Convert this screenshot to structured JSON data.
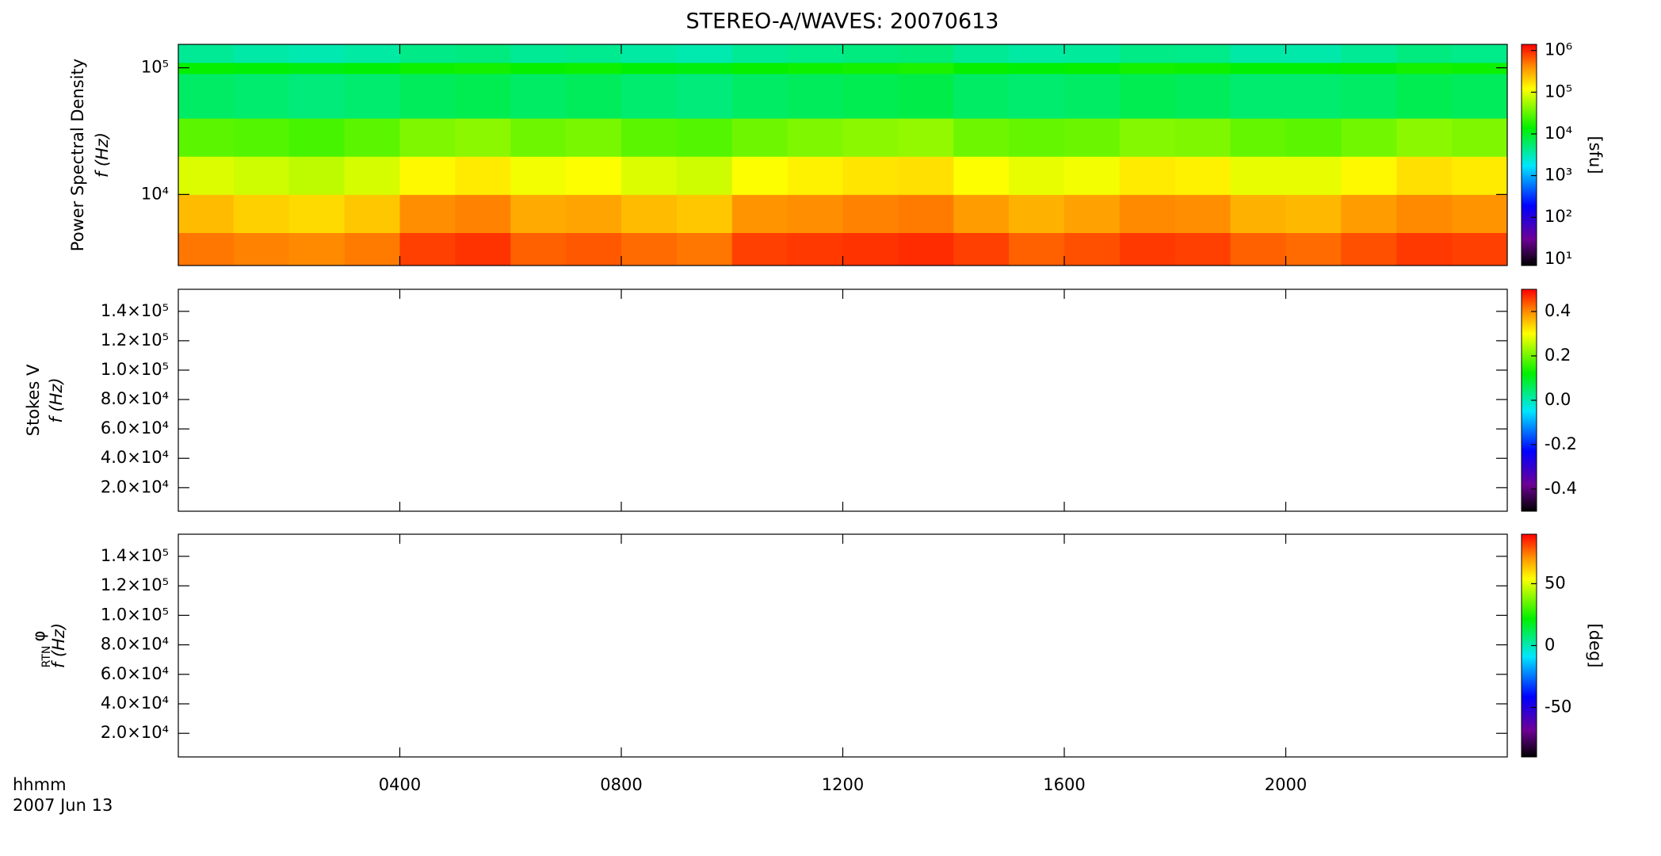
{
  "chart_data": {
    "type": "heatmap",
    "title": "STEREO-A/WAVES: 20070613",
    "xlabel": "hhmm",
    "date": "2007 Jun 13",
    "xlim": [
      0,
      24
    ],
    "xticks": [
      {
        "value": 4,
        "label": "0400"
      },
      {
        "value": 8,
        "label": "0800"
      },
      {
        "value": 12,
        "label": "1200"
      },
      {
        "value": 16,
        "label": "1600"
      },
      {
        "value": 20,
        "label": "2000"
      }
    ],
    "time_bins": [
      0,
      1,
      2,
      3,
      4,
      5,
      6,
      7,
      8,
      9,
      10,
      11,
      12,
      13,
      14,
      15,
      16,
      17,
      18,
      19,
      20,
      21,
      22,
      23,
      24
    ],
    "panels": [
      {
        "ylabel": "Power Spectral Density",
        "ylabel2": "f (Hz)",
        "ylog": true,
        "ylim": [
          2750,
          153000
        ],
        "yticks": [
          {
            "value": 10000,
            "label": "10⁴"
          },
          {
            "value": 100000,
            "label": "10⁵"
          }
        ],
        "clog": true,
        "clim": [
          7,
          1400000
        ],
        "cticks": [
          {
            "value": 10,
            "label": "10¹"
          },
          {
            "value": 100,
            "label": "10²"
          },
          {
            "value": 1000,
            "label": "10³"
          },
          {
            "value": 10000,
            "label": "10⁴"
          },
          {
            "value": 100000,
            "label": "10⁵"
          },
          {
            "value": 1000000,
            "label": "10⁶"
          }
        ],
        "clabel": "[sfu]",
        "freq_bins": [
          2750,
          5000,
          10000,
          20000,
          40000,
          90000,
          110000,
          153000
        ],
        "z": [
          [
            500000,
            450000,
            420000,
            480000,
            800000,
            900000,
            600000,
            650000,
            550000,
            500000,
            800000,
            850000,
            900000,
            950000,
            800000,
            600000,
            700000,
            850000,
            800000,
            600000,
            550000,
            700000,
            850000,
            800000
          ],
          [
            250000,
            200000,
            180000,
            220000,
            400000,
            450000,
            300000,
            320000,
            250000,
            220000,
            380000,
            400000,
            450000,
            480000,
            350000,
            280000,
            330000,
            420000,
            400000,
            280000,
            260000,
            350000,
            420000,
            380000
          ],
          [
            90000,
            80000,
            70000,
            85000,
            130000,
            150000,
            110000,
            120000,
            90000,
            80000,
            120000,
            140000,
            160000,
            170000,
            120000,
            100000,
            110000,
            150000,
            140000,
            100000,
            100000,
            130000,
            170000,
            150000
          ],
          [
            30000,
            28000,
            25000,
            30000,
            40000,
            45000,
            35000,
            38000,
            30000,
            28000,
            35000,
            40000,
            45000,
            48000,
            35000,
            32000,
            34000,
            42000,
            40000,
            32000,
            30000,
            36000,
            45000,
            40000
          ],
          [
            6000,
            5500,
            5000,
            5500,
            6500,
            7000,
            6000,
            6500,
            5500,
            5000,
            6000,
            6500,
            7000,
            7500,
            6000,
            5500,
            6000,
            7000,
            6500,
            5500,
            5500,
            6000,
            7000,
            6500
          ],
          [
            14000,
            13000,
            12000,
            13000,
            15000,
            16000,
            14000,
            15000,
            13000,
            12000,
            14000,
            15000,
            16000,
            17000,
            14000,
            13000,
            14000,
            16000,
            15000,
            13000,
            13000,
            14000,
            16000,
            15000
          ],
          [
            4000,
            3500,
            3200,
            3600,
            4500,
            4800,
            4000,
            4200,
            3600,
            3300,
            4000,
            4400,
            4800,
            5000,
            4000,
            3600,
            3800,
            4600,
            4400,
            3500,
            3400,
            4000,
            4800,
            4400
          ]
        ]
      },
      {
        "ylabel": "Stokes V",
        "ylabel2": "f (Hz)",
        "ylog": false,
        "ylim": [
          4000,
          155000
        ],
        "yticks": [
          {
            "value": 20000,
            "label": "2.0×10⁴"
          },
          {
            "value": 40000,
            "label": "4.0×10⁴"
          },
          {
            "value": 60000,
            "label": "6.0×10⁴"
          },
          {
            "value": 80000,
            "label": "8.0×10⁴"
          },
          {
            "value": 100000,
            "label": "1.0×10⁵"
          },
          {
            "value": 120000,
            "label": "1.2×10⁵"
          },
          {
            "value": 140000,
            "label": "1.4×10⁵"
          }
        ],
        "clog": false,
        "clim": [
          -0.5,
          0.5
        ],
        "cticks": [
          -0.4,
          -0.2,
          {
            "value": 0,
            "label": "0.0"
          },
          0.2,
          0.4
        ]
      },
      {
        "ylabel": "φ",
        "ylabel_sub": "RTN",
        "ylabel2": "f (Hz)",
        "ylog": false,
        "ylim": [
          4000,
          155000
        ],
        "yticks": [
          {
            "value": 20000,
            "label": "2.0×10⁴"
          },
          {
            "value": 40000,
            "label": "4.0×10⁴"
          },
          {
            "value": 60000,
            "label": "6.0×10⁴"
          },
          {
            "value": 80000,
            "label": "8.0×10⁴"
          },
          {
            "value": 100000,
            "label": "1.0×10⁵"
          },
          {
            "value": 120000,
            "label": "1.2×10⁵"
          },
          {
            "value": 140000,
            "label": "1.4×10⁵"
          }
        ],
        "clog": false,
        "clim": [
          -90,
          90
        ],
        "cticks": [
          -50,
          0,
          50
        ],
        "clabel": "[deg]"
      }
    ]
  }
}
